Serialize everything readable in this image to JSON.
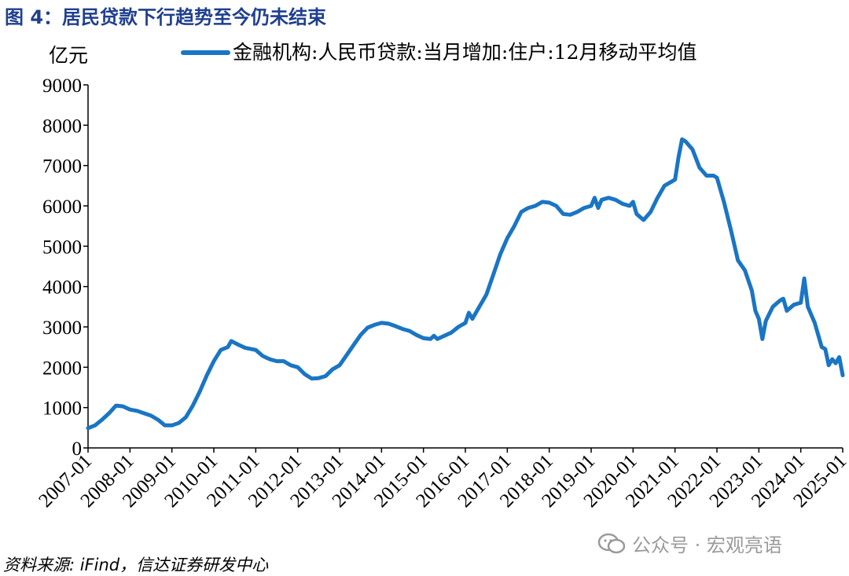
{
  "figure_title": "图 4：居民贷款下行趋势至今仍未结束",
  "source": "资料来源: iFind，信达证券研发中心",
  "watermark": "公众号 · 宏观亮语",
  "chart_data": {
    "type": "line",
    "title": "",
    "ylabel": "亿元",
    "xlabel": "",
    "ylim": [
      0,
      9000
    ],
    "yticks": [
      0,
      1000,
      2000,
      3000,
      4000,
      5000,
      6000,
      7000,
      8000,
      9000
    ],
    "xticks": [
      "2007-01",
      "2008-01",
      "2009-01",
      "2010-01",
      "2011-01",
      "2012-01",
      "2013-01",
      "2014-01",
      "2015-01",
      "2016-01",
      "2017-01",
      "2018-01",
      "2019-01",
      "2020-01",
      "2021-01",
      "2022-01",
      "2023-01",
      "2024-01",
      "2025-01"
    ],
    "grid": false,
    "legend_position": "top",
    "line_color": "#1a75c4",
    "series": [
      {
        "name": "金融机构:人民币贷款:当月增加:住户:12月移动平均值",
        "points": [
          [
            "2007-01",
            490
          ],
          [
            "2007-03",
            560
          ],
          [
            "2007-05",
            700
          ],
          [
            "2007-07",
            860
          ],
          [
            "2007-09",
            1050
          ],
          [
            "2007-11",
            1030
          ],
          [
            "2008-01",
            950
          ],
          [
            "2008-03",
            920
          ],
          [
            "2008-05",
            860
          ],
          [
            "2008-07",
            800
          ],
          [
            "2008-09",
            700
          ],
          [
            "2008-11",
            560
          ],
          [
            "2009-01",
            560
          ],
          [
            "2009-03",
            620
          ],
          [
            "2009-05",
            760
          ],
          [
            "2009-07",
            1050
          ],
          [
            "2009-09",
            1400
          ],
          [
            "2009-11",
            1800
          ],
          [
            "2010-01",
            2150
          ],
          [
            "2010-03",
            2430
          ],
          [
            "2010-05",
            2500
          ],
          [
            "2010-06",
            2650
          ],
          [
            "2010-08",
            2560
          ],
          [
            "2010-10",
            2480
          ],
          [
            "2011-01",
            2430
          ],
          [
            "2011-03",
            2280
          ],
          [
            "2011-05",
            2200
          ],
          [
            "2011-07",
            2150
          ],
          [
            "2011-09",
            2150
          ],
          [
            "2011-11",
            2050
          ],
          [
            "2012-01",
            2000
          ],
          [
            "2012-03",
            1830
          ],
          [
            "2012-05",
            1720
          ],
          [
            "2012-07",
            1730
          ],
          [
            "2012-09",
            1780
          ],
          [
            "2012-11",
            1950
          ],
          [
            "2013-01",
            2050
          ],
          [
            "2013-03",
            2300
          ],
          [
            "2013-05",
            2550
          ],
          [
            "2013-07",
            2800
          ],
          [
            "2013-09",
            2980
          ],
          [
            "2013-11",
            3050
          ],
          [
            "2014-01",
            3100
          ],
          [
            "2014-03",
            3080
          ],
          [
            "2014-05",
            3020
          ],
          [
            "2014-07",
            2950
          ],
          [
            "2014-09",
            2900
          ],
          [
            "2014-11",
            2800
          ],
          [
            "2015-01",
            2720
          ],
          [
            "2015-03",
            2700
          ],
          [
            "2015-04",
            2780
          ],
          [
            "2015-05",
            2700
          ],
          [
            "2015-07",
            2780
          ],
          [
            "2015-09",
            2860
          ],
          [
            "2015-11",
            3000
          ],
          [
            "2016-01",
            3100
          ],
          [
            "2016-02",
            3350
          ],
          [
            "2016-03",
            3200
          ],
          [
            "2016-05",
            3500
          ],
          [
            "2016-07",
            3800
          ],
          [
            "2016-09",
            4300
          ],
          [
            "2016-11",
            4800
          ],
          [
            "2017-01",
            5200
          ],
          [
            "2017-03",
            5500
          ],
          [
            "2017-05",
            5850
          ],
          [
            "2017-07",
            5950
          ],
          [
            "2017-09",
            6000
          ],
          [
            "2017-11",
            6100
          ],
          [
            "2018-01",
            6080
          ],
          [
            "2018-03",
            6000
          ],
          [
            "2018-05",
            5800
          ],
          [
            "2018-07",
            5780
          ],
          [
            "2018-09",
            5850
          ],
          [
            "2018-11",
            5950
          ],
          [
            "2019-01",
            6000
          ],
          [
            "2019-02",
            6200
          ],
          [
            "2019-03",
            5950
          ],
          [
            "2019-04",
            6150
          ],
          [
            "2019-06",
            6200
          ],
          [
            "2019-08",
            6150
          ],
          [
            "2019-10",
            6050
          ],
          [
            "2019-12",
            6000
          ],
          [
            "2020-01",
            6100
          ],
          [
            "2020-02",
            5800
          ],
          [
            "2020-04",
            5650
          ],
          [
            "2020-06",
            5850
          ],
          [
            "2020-08",
            6200
          ],
          [
            "2020-10",
            6500
          ],
          [
            "2020-12",
            6600
          ],
          [
            "2021-01",
            6650
          ],
          [
            "2021-02",
            7200
          ],
          [
            "2021-03",
            7650
          ],
          [
            "2021-04",
            7600
          ],
          [
            "2021-06",
            7400
          ],
          [
            "2021-08",
            6950
          ],
          [
            "2021-10",
            6750
          ],
          [
            "2021-12",
            6750
          ],
          [
            "2022-01",
            6700
          ],
          [
            "2022-03",
            6100
          ],
          [
            "2022-05",
            5400
          ],
          [
            "2022-07",
            4650
          ],
          [
            "2022-09",
            4400
          ],
          [
            "2022-11",
            3900
          ],
          [
            "2022-12",
            3400
          ],
          [
            "2023-01",
            3200
          ],
          [
            "2023-02",
            2700
          ],
          [
            "2023-03",
            3150
          ],
          [
            "2023-05",
            3500
          ],
          [
            "2023-07",
            3650
          ],
          [
            "2023-08",
            3700
          ],
          [
            "2023-09",
            3400
          ],
          [
            "2023-11",
            3550
          ],
          [
            "2024-01",
            3600
          ],
          [
            "2024-02",
            4200
          ],
          [
            "2024-03",
            3500
          ],
          [
            "2024-05",
            3100
          ],
          [
            "2024-07",
            2500
          ],
          [
            "2024-08",
            2450
          ],
          [
            "2024-09",
            2050
          ],
          [
            "2024-10",
            2200
          ],
          [
            "2024-11",
            2100
          ],
          [
            "2024-12",
            2250
          ],
          [
            "2025-01",
            1800
          ]
        ]
      }
    ]
  }
}
